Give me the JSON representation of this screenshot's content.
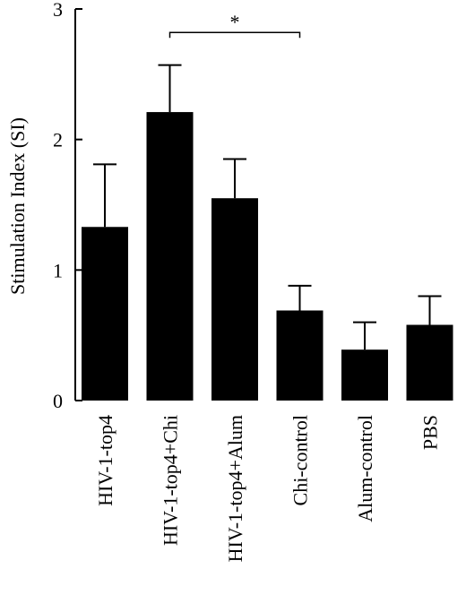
{
  "chart_data": {
    "type": "bar",
    "title": "",
    "xlabel": "",
    "ylabel": "Stimulation Index (SI)",
    "ylim": [
      0,
      3
    ],
    "yticks": [
      0,
      1,
      2,
      3
    ],
    "categories": [
      "HIV-1-top4",
      "HIV-1-top4+Chi",
      "HIV-1-top4+Alum",
      "Chi-control",
      "Alum-control",
      "PBS"
    ],
    "values": [
      1.33,
      2.21,
      1.55,
      0.69,
      0.39,
      0.58
    ],
    "errors": [
      0.48,
      0.36,
      0.3,
      0.19,
      0.21,
      0.22
    ],
    "error_bars": "upper",
    "bar_color": "#000000",
    "grid": false,
    "annotations": [
      {
        "text": "*",
        "from_category": "HIV-1-top4+Chi",
        "to_category": "Chi-control",
        "y": 2.82
      }
    ]
  }
}
